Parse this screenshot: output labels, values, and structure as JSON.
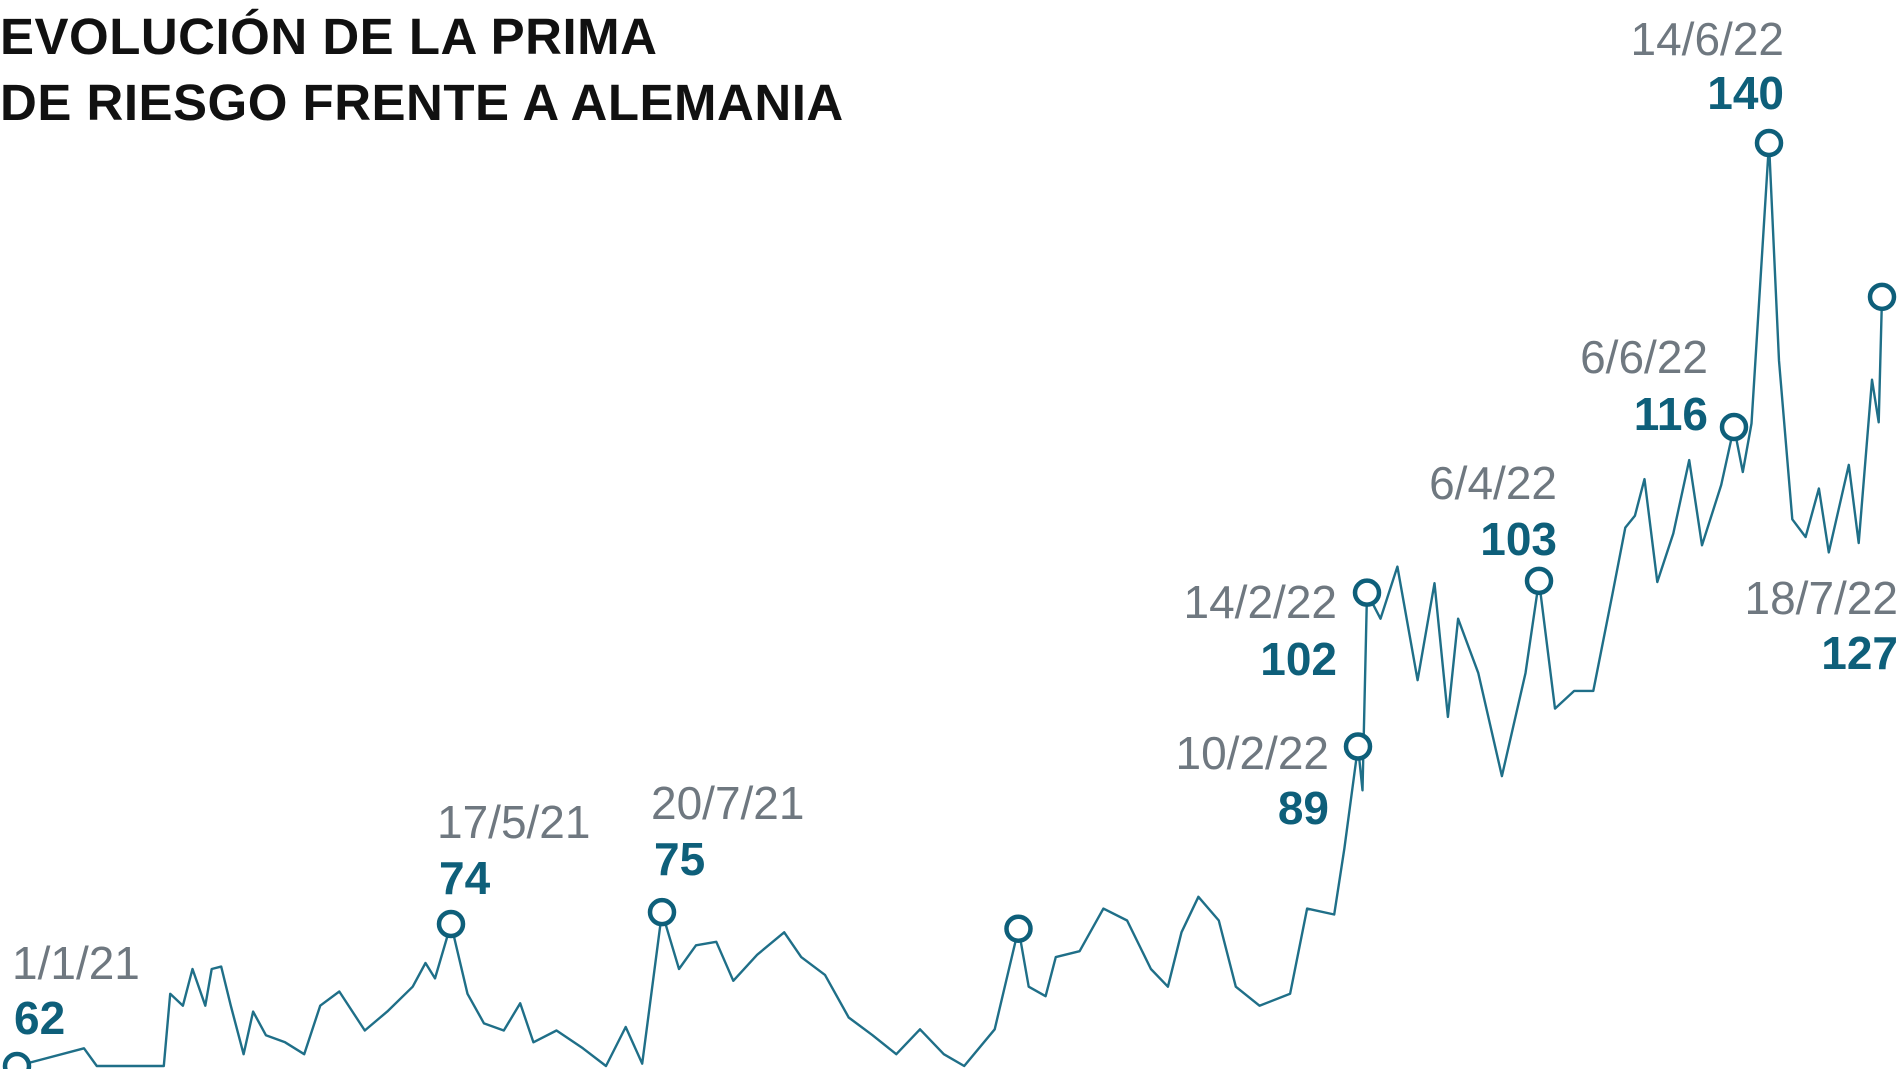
{
  "chart_data": {
    "type": "line",
    "title": [
      "EVOLUCIÓN DE LA PRIMA",
      "DE RIESGO FRENTE A ALEMANIA"
    ],
    "xlabel": "",
    "ylabel": "",
    "grid": false,
    "legend": "none",
    "colors": {
      "line": "#1f6f88",
      "marker": "#0e5f7a",
      "value_label": "#0e5f7a",
      "date_label": "#6f7880",
      "title": "#111111"
    },
    "series": [
      {
        "points": [
          [
            "2021-01-01",
            62
          ],
          [
            "2021-01-22",
            63.5
          ],
          [
            "2021-01-26",
            62
          ],
          [
            "2021-02-16",
            62
          ],
          [
            "2021-02-18",
            68.1
          ],
          [
            "2021-02-22",
            67.1
          ],
          [
            "2021-02-25",
            70.2
          ],
          [
            "2021-03-01",
            67.1
          ],
          [
            "2021-03-03",
            70.2
          ],
          [
            "2021-03-06",
            70.4
          ],
          [
            "2021-03-09",
            67.1
          ],
          [
            "2021-03-13",
            63.0
          ],
          [
            "2021-03-16",
            66.6
          ],
          [
            "2021-03-20",
            64.6
          ],
          [
            "2021-03-26",
            64.0
          ],
          [
            "2021-04-01",
            63.0
          ],
          [
            "2021-04-06",
            67.1
          ],
          [
            "2021-04-12",
            68.3
          ],
          [
            "2021-04-20",
            65.0
          ],
          [
            "2021-04-27",
            66.6
          ],
          [
            "2021-05-05",
            68.7
          ],
          [
            "2021-05-09",
            70.7
          ],
          [
            "2021-05-12",
            69.4
          ],
          [
            "2021-05-17",
            74
          ],
          [
            "2021-05-22",
            68.1
          ],
          [
            "2021-05-27",
            65.6
          ],
          [
            "2021-06-02",
            65.0
          ],
          [
            "2021-06-07",
            67.3
          ],
          [
            "2021-06-11",
            64.0
          ],
          [
            "2021-06-18",
            65.0
          ],
          [
            "2021-06-26",
            63.5
          ],
          [
            "2021-07-03",
            62.0
          ],
          [
            "2021-07-09",
            65.3
          ],
          [
            "2021-07-14",
            62.2
          ],
          [
            "2021-07-20",
            75
          ],
          [
            "2021-07-25",
            70.2
          ],
          [
            "2021-07-30",
            72.2
          ],
          [
            "2021-08-05",
            72.5
          ],
          [
            "2021-08-10",
            69.2
          ],
          [
            "2021-08-17",
            71.4
          ],
          [
            "2021-08-25",
            73.3
          ],
          [
            "2021-08-30",
            71.2
          ],
          [
            "2021-09-06",
            69.7
          ],
          [
            "2021-09-13",
            66.1
          ],
          [
            "2021-09-20",
            64.6
          ],
          [
            "2021-09-27",
            63.0
          ],
          [
            "2021-10-04",
            65.1
          ],
          [
            "2021-10-11",
            63.0
          ],
          [
            "2021-10-17",
            62.0
          ],
          [
            "2021-10-26",
            65.1
          ],
          [
            "2021-11-02",
            73.6
          ],
          [
            "2021-11-05",
            68.7
          ],
          [
            "2021-11-10",
            67.9
          ],
          [
            "2021-11-13",
            71.2
          ],
          [
            "2021-11-20",
            71.7
          ],
          [
            "2021-11-27",
            75.3
          ],
          [
            "2021-12-04",
            74.3
          ],
          [
            "2021-12-11",
            70.2
          ],
          [
            "2021-12-16",
            68.7
          ],
          [
            "2021-12-20",
            73.3
          ],
          [
            "2021-12-25",
            76.3
          ],
          [
            "2021-12-31",
            74.3
          ],
          [
            "2022-01-05",
            68.7
          ],
          [
            "2022-01-12",
            67.1
          ],
          [
            "2022-01-21",
            68.1
          ],
          [
            "2022-01-26",
            75.3
          ],
          [
            "2022-02-03",
            74.8
          ],
          [
            "2022-02-06",
            80.4
          ],
          [
            "2022-02-10",
            89
          ],
          [
            "2022-02-12",
            85.3
          ],
          [
            "2022-02-14",
            102
          ],
          [
            "2022-02-18",
            99.8
          ],
          [
            "2022-02-23",
            104.2
          ],
          [
            "2022-03-01",
            94.6
          ],
          [
            "2022-03-06",
            102.8
          ],
          [
            "2022-03-10",
            91.5
          ],
          [
            "2022-03-13",
            99.8
          ],
          [
            "2022-03-19",
            95.2
          ],
          [
            "2022-03-26",
            86.5
          ],
          [
            "2022-04-02",
            95.2
          ],
          [
            "2022-04-06",
            103
          ],
          [
            "2022-04-11",
            92.2
          ],
          [
            "2022-04-17",
            93.7
          ],
          [
            "2022-04-23",
            93.7
          ],
          [
            "2022-04-29",
            101.9
          ],
          [
            "2022-05-03",
            107.5
          ],
          [
            "2022-05-06",
            108.5
          ],
          [
            "2022-05-09",
            111.6
          ],
          [
            "2022-05-13",
            102.9
          ],
          [
            "2022-05-18",
            107.0
          ],
          [
            "2022-05-23",
            113.2
          ],
          [
            "2022-05-27",
            106.0
          ],
          [
            "2022-06-02",
            111.1
          ],
          [
            "2022-06-06",
            116
          ],
          [
            "2022-06-08",
            112.2
          ],
          [
            "2022-06-10",
            116.3
          ],
          [
            "2022-06-14",
            140
          ],
          [
            "2022-06-17",
            121.6
          ],
          [
            "2022-06-21",
            108.2
          ],
          [
            "2022-06-25",
            106.7
          ],
          [
            "2022-06-29",
            110.8
          ],
          [
            "2022-07-02",
            105.4
          ],
          [
            "2022-07-08",
            112.8
          ],
          [
            "2022-07-11",
            106.2
          ],
          [
            "2022-07-15",
            120.0
          ],
          [
            "2022-07-17",
            116.4
          ],
          [
            "2022-07-18",
            127
          ]
        ]
      }
    ],
    "ylim": [
      62,
      140
    ],
    "annotations": [
      {
        "date": "2021-01-01",
        "date_label": "1/1/21",
        "value": 62,
        "value_label": "62"
      },
      {
        "date": "2021-05-17",
        "date_label": "17/5/21",
        "value": 74,
        "value_label": "74"
      },
      {
        "date": "2021-07-20",
        "date_label": "20/7/21",
        "value": 75,
        "value_label": "75"
      },
      {
        "date": "2021-11-02",
        "date_label": "",
        "value": 73.6,
        "value_label": ""
      },
      {
        "date": "2022-02-10",
        "date_label": "10/2/22",
        "value": 89,
        "value_label": "89"
      },
      {
        "date": "2022-02-14",
        "date_label": "14/2/22",
        "value": 102,
        "value_label": "102"
      },
      {
        "date": "2022-04-06",
        "date_label": "6/4/22",
        "value": 103,
        "value_label": "103"
      },
      {
        "date": "2022-06-06",
        "date_label": "6/6/22",
        "value": 116,
        "value_label": "116"
      },
      {
        "date": "2022-06-14",
        "date_label": "14/6/22",
        "value": 140,
        "value_label": "140"
      },
      {
        "date": "2022-07-18",
        "date_label": "18/7/22",
        "value": 127,
        "value_label": "127"
      }
    ]
  }
}
